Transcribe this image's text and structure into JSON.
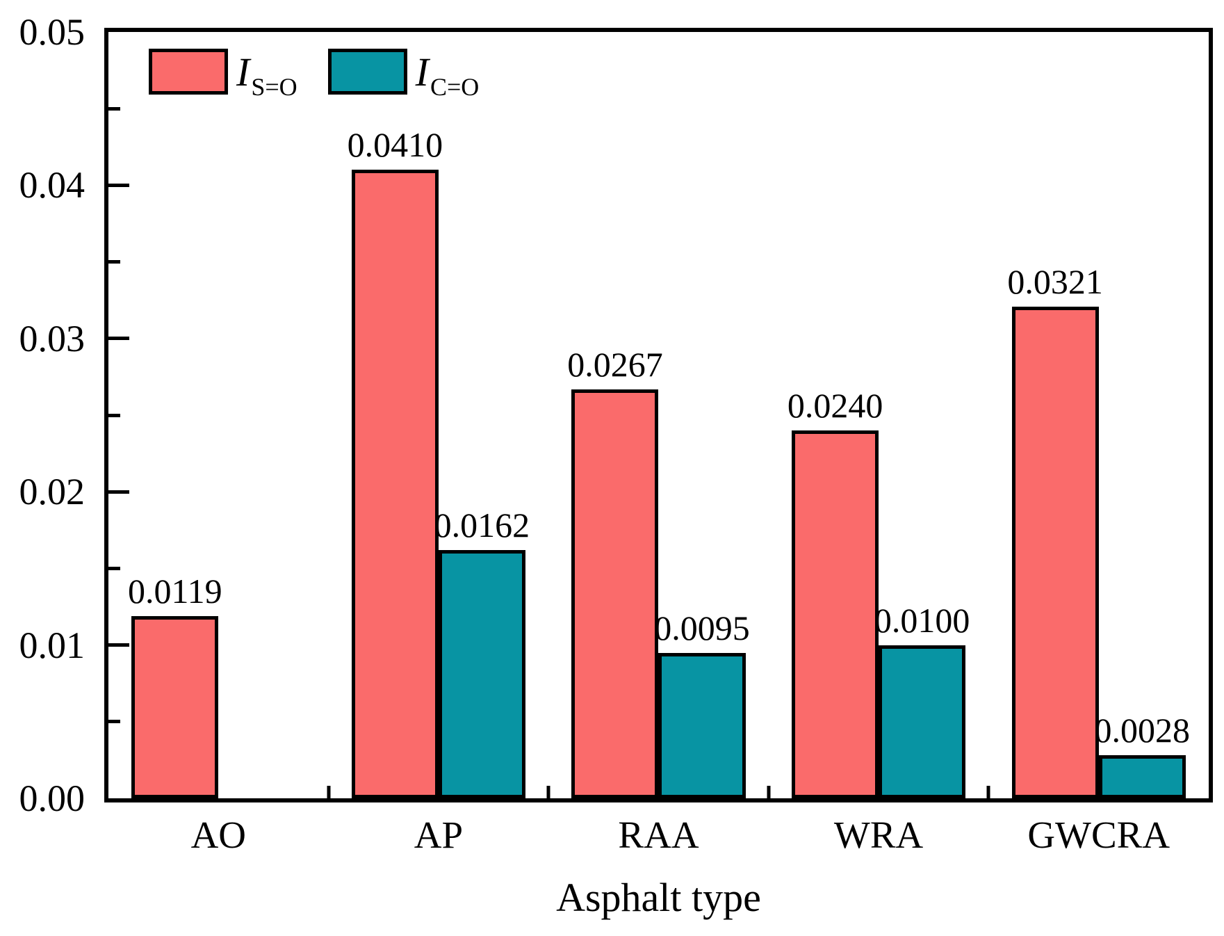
{
  "chart_data": {
    "type": "bar",
    "title": "",
    "xlabel": "Asphalt type",
    "ylabel": "",
    "ylim": [
      0,
      0.05
    ],
    "grid": false,
    "legend_position": "top-left",
    "categories": [
      "AO",
      "AP",
      "RAA",
      "WRA",
      "GWCRA"
    ],
    "series": [
      {
        "name": "I_S=O",
        "legend_main": "I",
        "legend_sub": "S=O",
        "color": "#FA6B6B",
        "values": [
          0.0119,
          0.041,
          0.0267,
          0.024,
          0.0321
        ],
        "labels": [
          "0.0119",
          "0.0410",
          "0.0267",
          "0.0240",
          "0.0321"
        ]
      },
      {
        "name": "I_C=O",
        "legend_main": "I",
        "legend_sub": "C=O",
        "color": "#0894A3",
        "values": [
          null,
          0.0162,
          0.0095,
          0.01,
          0.0028
        ],
        "labels": [
          "",
          "0.0162",
          "0.0095",
          "0.0100",
          "0.0028"
        ]
      }
    ],
    "yticks": [
      {
        "value": 0.0,
        "label": "0.00"
      },
      {
        "value": 0.01,
        "label": "0.01"
      },
      {
        "value": 0.02,
        "label": "0.02"
      },
      {
        "value": 0.03,
        "label": "0.03"
      },
      {
        "value": 0.04,
        "label": "0.04"
      },
      {
        "value": 0.05,
        "label": "0.05"
      }
    ],
    "y_minor_step": 0.005
  },
  "colors": {
    "bar_border": "#000000",
    "axis": "#000000",
    "background": "#ffffff"
  }
}
